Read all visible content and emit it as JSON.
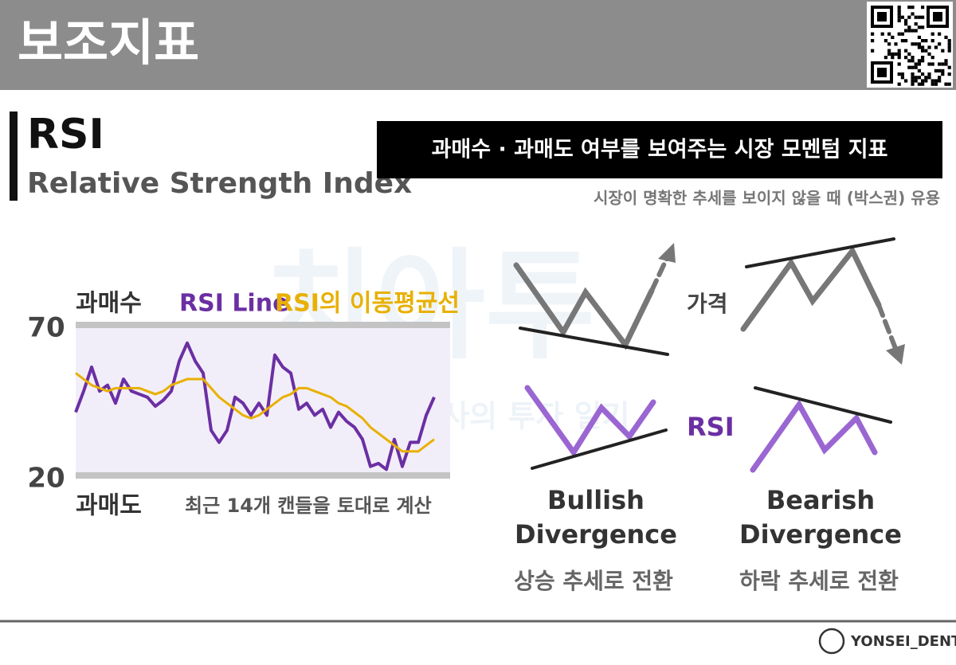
{
  "header": {
    "title": "보조지표"
  },
  "heading": {
    "title": "RSI",
    "subtitle": "Relative Strength Index"
  },
  "tagline": "과매수 · 과매도 여부를 보여주는 시장 모멘텀 지표",
  "note": "시장이 명확한 추세를 보이지 않을 때 (박스권) 유용",
  "watermark": {
    "title": "치아투",
    "subtitle": "치과의사의 투자 일기"
  },
  "chart_data": {
    "type": "line",
    "series": [
      {
        "name": "RSI Line",
        "color": "#6b2fa3",
        "values": [
          41,
          48,
          56,
          48,
          50,
          44,
          52,
          48,
          47,
          46,
          43,
          45,
          48,
          58,
          64,
          58,
          54,
          35,
          31,
          35,
          46,
          44,
          40,
          44,
          40,
          60,
          56,
          54,
          42,
          44,
          40,
          42,
          36,
          41,
          38,
          36,
          32,
          23,
          24,
          22,
          32,
          23,
          31,
          31,
          40,
          46
        ]
      },
      {
        "name": "RSI의 이동평균선",
        "color": "#e8b000",
        "values": [
          54,
          52,
          50,
          49,
          48,
          49,
          49,
          49,
          49,
          48,
          47,
          48,
          50,
          51,
          52,
          52,
          52,
          49,
          46,
          44,
          42,
          40,
          39,
          40,
          42,
          44,
          46,
          47,
          49,
          49,
          48,
          47,
          46,
          44,
          43,
          41,
          39,
          36,
          34,
          32,
          30,
          28,
          28,
          28,
          30,
          32
        ]
      }
    ],
    "ylim": [
      20,
      70
    ],
    "yticks": [
      20,
      70
    ],
    "annotations": [
      "과매수",
      "과매도",
      "최근 14개 캔들을 토대로 계산"
    ]
  },
  "divergence": {
    "price_label": "가격",
    "rsi_label": "RSI",
    "bullish": {
      "title": [
        "Bullish",
        "Divergence"
      ],
      "caption": "상승 추세로 전환"
    },
    "bearish": {
      "title": [
        "Bearish",
        "Divergence"
      ],
      "caption": "하락 추세로 전환"
    }
  },
  "footer": {
    "brand": "YONSEI_DENT"
  }
}
